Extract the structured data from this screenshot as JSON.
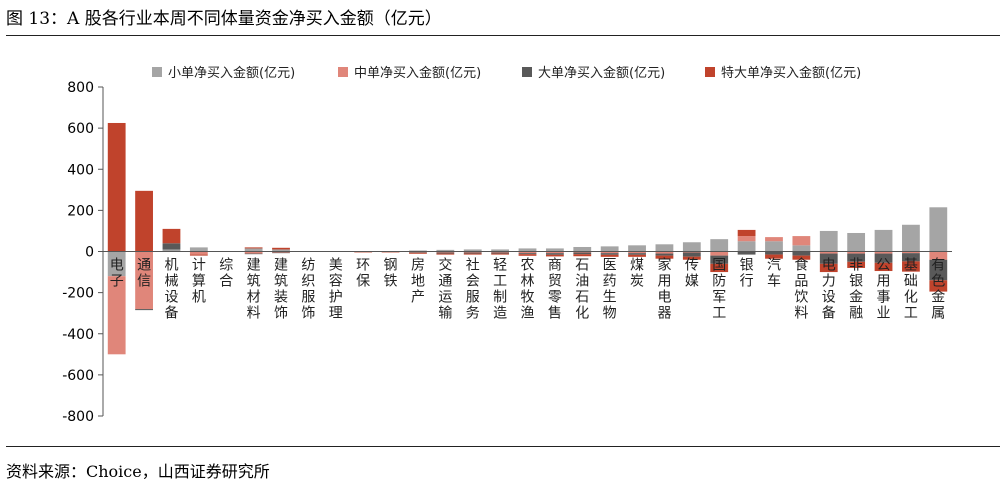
{
  "figure": {
    "title": "图 13：A 股各行业本周不同体量资金净买入金额（亿元）",
    "source": "资料来源：Choice，山西证券研究所"
  },
  "chart_data": {
    "type": "bar",
    "stacked": true,
    "categories": [
      "电子",
      "通信",
      "机械设备",
      "计算机",
      "综合",
      "建筑材料",
      "建筑装饰",
      "纺织服饰",
      "美容护理",
      "环保",
      "钢铁",
      "房地产",
      "交通运输",
      "社会服务",
      "轻工制造",
      "农林牧渔",
      "商贸零售",
      "石油石化",
      "医药生物",
      "煤炭",
      "家用电器",
      "传媒",
      "国防军工",
      "银行",
      "汽车",
      "食品饮料",
      "电力设备",
      "非银金融",
      "公用事业",
      "基础化工",
      "有色金属"
    ],
    "series": [
      {
        "name": "小单净买入金额(亿元)",
        "color": "#a5a5a5",
        "values": [
          -120,
          0,
          10,
          20,
          0,
          15,
          10,
          0,
          0,
          0,
          0,
          5,
          8,
          10,
          10,
          15,
          15,
          22,
          25,
          30,
          35,
          45,
          60,
          50,
          50,
          30,
          100,
          90,
          105,
          130,
          215
        ]
      },
      {
        "name": "中单净买入金额(亿元)",
        "color": "#e0867a",
        "values": [
          -380,
          -280,
          0,
          -15,
          0,
          -10,
          -5,
          0,
          0,
          0,
          0,
          -3,
          -5,
          -5,
          -5,
          -8,
          -8,
          -5,
          -8,
          -8,
          -10,
          -5,
          -20,
          25,
          20,
          45,
          -10,
          -10,
          -10,
          -8,
          -40
        ]
      },
      {
        "name": "大单净买入金额(亿元)",
        "color": "#595959",
        "values": [
          0,
          -5,
          30,
          0,
          0,
          -3,
          -3,
          0,
          0,
          -2,
          -2,
          -3,
          -5,
          -5,
          -5,
          -5,
          -8,
          -8,
          -8,
          -8,
          -10,
          -20,
          -40,
          -15,
          -15,
          -20,
          -50,
          -40,
          -45,
          -40,
          -100
        ]
      },
      {
        "name": "特大单净买入金额(亿元)",
        "color": "#c0432c",
        "values": [
          625,
          295,
          70,
          -5,
          0,
          5,
          8,
          0,
          0,
          -2,
          -2,
          -5,
          -5,
          -5,
          -5,
          -8,
          -8,
          -10,
          -10,
          -10,
          -15,
          -15,
          -40,
          30,
          -20,
          -20,
          -40,
          -30,
          -40,
          -50,
          -55
        ]
      }
    ],
    "ylim": [
      -800,
      800
    ],
    "yticks": [
      -800,
      -600,
      -400,
      -200,
      0,
      200,
      400,
      600,
      800
    ],
    "legend_position": "top",
    "grid": false
  }
}
